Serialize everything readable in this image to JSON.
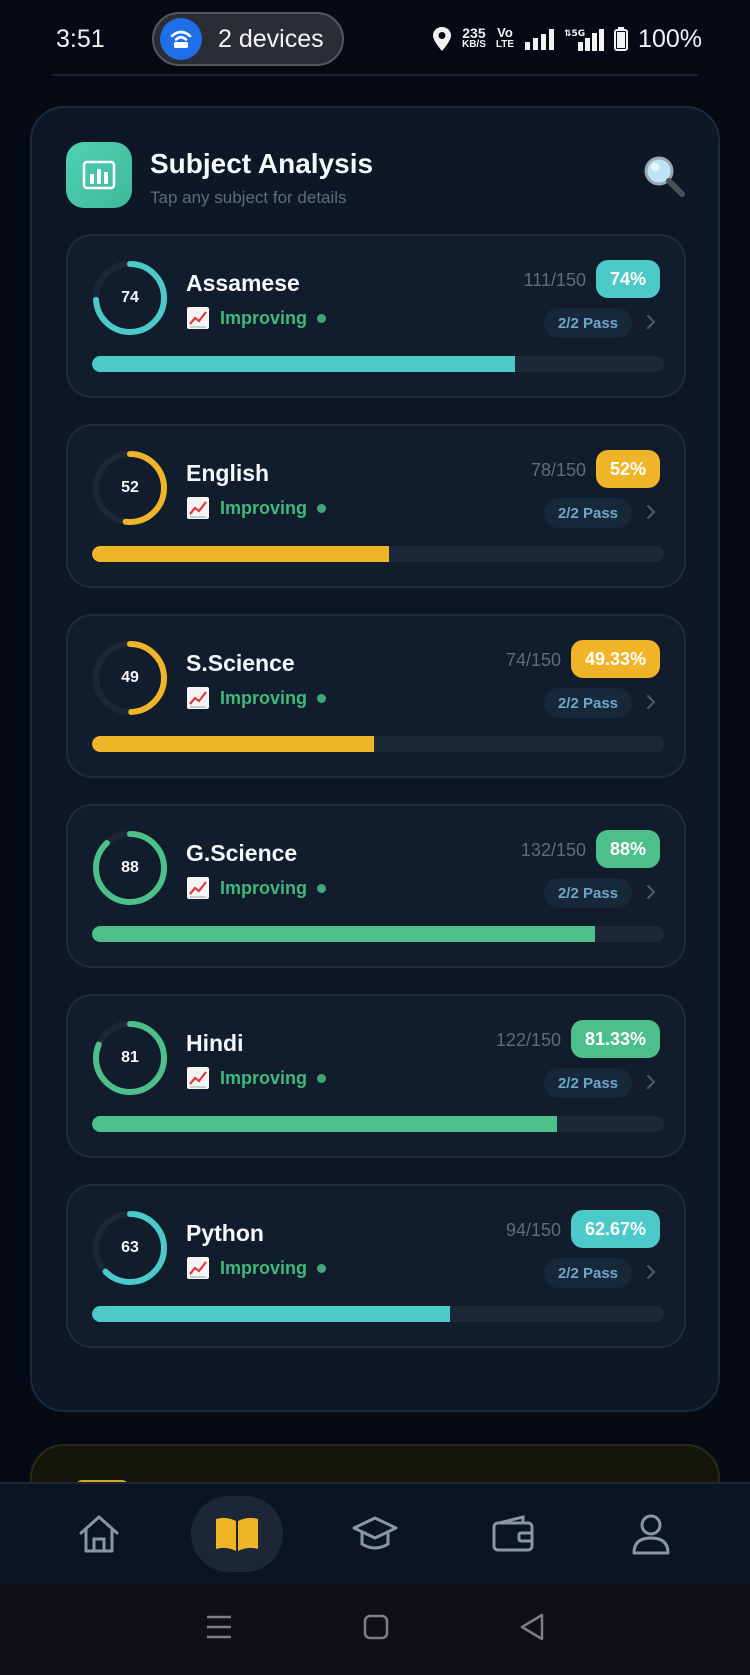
{
  "status_bar": {
    "time": "3:51",
    "hotspot_label": "2 devices",
    "net_speed_top": "235",
    "net_speed_bottom": "KB/S",
    "volte_top": "Vo",
    "volte_bottom": "LTE",
    "battery": "100%"
  },
  "header": {
    "title": "Subject Analysis",
    "subtitle": "Tap any subject for details"
  },
  "colors": {
    "teal": "#4cc9c9",
    "amber": "#f0b429",
    "green": "#4cbf8a",
    "trend_green": "#3fb879"
  },
  "subjects": [
    {
      "name": "Assamese",
      "ring_value": "74",
      "score": "111/150",
      "percent": "74%",
      "fraction": 0.74,
      "trend": "Improving",
      "pass": "2/2 Pass",
      "color": "#4cc9c9"
    },
    {
      "name": "English",
      "ring_value": "52",
      "score": "78/150",
      "percent": "52%",
      "fraction": 0.52,
      "trend": "Improving",
      "pass": "2/2 Pass",
      "color": "#f0b429"
    },
    {
      "name": "S.Science",
      "ring_value": "49",
      "score": "74/150",
      "percent": "49.33%",
      "fraction": 0.4933,
      "trend": "Improving",
      "pass": "2/2 Pass",
      "color": "#f0b429"
    },
    {
      "name": "G.Science",
      "ring_value": "88",
      "score": "132/150",
      "percent": "88%",
      "fraction": 0.88,
      "trend": "Improving",
      "pass": "2/2 Pass",
      "color": "#4cbf8a"
    },
    {
      "name": "Hindi",
      "ring_value": "81",
      "score": "122/150",
      "percent": "81.33%",
      "fraction": 0.8133,
      "trend": "Improving",
      "pass": "2/2 Pass",
      "color": "#4cbf8a"
    },
    {
      "name": "Python",
      "ring_value": "63",
      "score": "94/150",
      "percent": "62.67%",
      "fraction": 0.6267,
      "trend": "Improving",
      "pass": "2/2 Pass",
      "color": "#4cc9c9"
    }
  ],
  "bottom_nav": [
    {
      "icon": "home-icon",
      "active": false
    },
    {
      "icon": "book-icon",
      "active": true
    },
    {
      "icon": "graduation-cap-icon",
      "active": false
    },
    {
      "icon": "wallet-icon",
      "active": false
    },
    {
      "icon": "profile-icon",
      "active": false
    }
  ],
  "system_nav": [
    "menu-icon",
    "home-square-icon",
    "back-icon"
  ]
}
